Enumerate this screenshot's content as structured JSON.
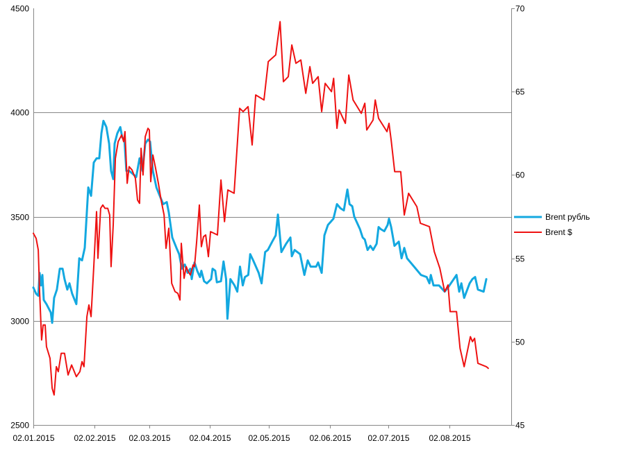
{
  "chart_data": {
    "type": "line",
    "title": "",
    "xlabel": "",
    "ylabel": "",
    "x_unit": "days since 02.01.2015",
    "xlim": [
      0,
      243.5
    ],
    "x_ticks": [
      {
        "day": 0,
        "label": "02.01.2015"
      },
      {
        "day": 31,
        "label": "02.02.2015"
      },
      {
        "day": 59,
        "label": "02.03.2015"
      },
      {
        "day": 90,
        "label": "02.04.2015"
      },
      {
        "day": 120,
        "label": "02.05.2015"
      },
      {
        "day": 151,
        "label": "02.06.2015"
      },
      {
        "day": 181,
        "label": "02.07.2015"
      },
      {
        "day": 212,
        "label": "02.08.2015"
      }
    ],
    "y_left": {
      "lim": [
        2500,
        4500
      ],
      "ticks": [
        "2500",
        "3000",
        "3500",
        "4000",
        "4500"
      ]
    },
    "y_right": {
      "lim": [
        45,
        70
      ],
      "ticks": [
        "45",
        "50",
        "55",
        "60",
        "65",
        "70"
      ]
    },
    "grid": true,
    "legend_position": "right",
    "series": [
      {
        "name": "Brent рубль",
        "axis": "left",
        "color": "#13a8e0",
        "points": [
          [
            0,
            3160
          ],
          [
            1.4,
            3130
          ],
          [
            2.5,
            3120
          ],
          [
            3.2,
            3230
          ],
          [
            3.9,
            3170
          ],
          [
            4.6,
            3220
          ],
          [
            5.3,
            3100
          ],
          [
            6.7,
            3080
          ],
          [
            8.9,
            3040
          ],
          [
            9.6,
            2990
          ],
          [
            10.6,
            3110
          ],
          [
            12,
            3150
          ],
          [
            13.5,
            3250
          ],
          [
            14.9,
            3250
          ],
          [
            15.9,
            3200
          ],
          [
            17.3,
            3150
          ],
          [
            18.4,
            3180
          ],
          [
            19.8,
            3130
          ],
          [
            21.9,
            3080
          ],
          [
            23.4,
            3300
          ],
          [
            24.8,
            3290
          ],
          [
            26.2,
            3350
          ],
          [
            28,
            3640
          ],
          [
            29.4,
            3600
          ],
          [
            30.8,
            3760
          ],
          [
            32.2,
            3780
          ],
          [
            33.6,
            3780
          ],
          [
            34.7,
            3900
          ],
          [
            35.7,
            3960
          ],
          [
            37.2,
            3930
          ],
          [
            38.6,
            3850
          ],
          [
            39.6,
            3720
          ],
          [
            40.7,
            3680
          ],
          [
            41.4,
            3850
          ],
          [
            42.8,
            3900
          ],
          [
            44.3,
            3930
          ],
          [
            45.3,
            3880
          ],
          [
            46.4,
            3870
          ],
          [
            47.4,
            3720
          ],
          [
            48.8,
            3720
          ],
          [
            51.3,
            3700
          ],
          [
            52.4,
            3690
          ],
          [
            54.1,
            3780
          ],
          [
            55.6,
            3720
          ],
          [
            57,
            3850
          ],
          [
            58.4,
            3870
          ],
          [
            59.5,
            3860
          ],
          [
            60.9,
            3720
          ],
          [
            62.7,
            3640
          ],
          [
            64.4,
            3600
          ],
          [
            66.2,
            3560
          ],
          [
            68,
            3570
          ],
          [
            69,
            3520
          ],
          [
            70.8,
            3400
          ],
          [
            72.9,
            3350
          ],
          [
            74.3,
            3320
          ],
          [
            75.7,
            3250
          ],
          [
            77.2,
            3270
          ],
          [
            78.6,
            3230
          ],
          [
            80,
            3250
          ],
          [
            80.7,
            3200
          ],
          [
            82.1,
            3280
          ],
          [
            83.5,
            3240
          ],
          [
            84.9,
            3210
          ],
          [
            85.6,
            3240
          ],
          [
            87,
            3190
          ],
          [
            88.4,
            3180
          ],
          [
            90.6,
            3200
          ],
          [
            91.3,
            3250
          ],
          [
            92.7,
            3240
          ],
          [
            93.5,
            3185
          ],
          [
            95.6,
            3190
          ],
          [
            96.9,
            3285
          ],
          [
            98.2,
            3200
          ],
          [
            98.9,
            3010
          ],
          [
            100.4,
            3200
          ],
          [
            102.5,
            3170
          ],
          [
            103.9,
            3140
          ],
          [
            105.3,
            3260
          ],
          [
            106.7,
            3170
          ],
          [
            107.8,
            3210
          ],
          [
            109.5,
            3220
          ],
          [
            110.5,
            3320
          ],
          [
            112,
            3290
          ],
          [
            114.8,
            3230
          ],
          [
            116.3,
            3180
          ],
          [
            118.1,
            3330
          ],
          [
            119.5,
            3340
          ],
          [
            121.7,
            3380
          ],
          [
            123.5,
            3410
          ],
          [
            124.6,
            3510
          ],
          [
            126.4,
            3330
          ],
          [
            128.8,
            3370
          ],
          [
            131,
            3400
          ],
          [
            131.7,
            3310
          ],
          [
            133.1,
            3340
          ],
          [
            134.5,
            3330
          ],
          [
            135.9,
            3320
          ],
          [
            138.1,
            3220
          ],
          [
            139.8,
            3290
          ],
          [
            141.3,
            3260
          ],
          [
            144.1,
            3260
          ],
          [
            145.1,
            3280
          ],
          [
            146.9,
            3230
          ],
          [
            148.3,
            3410
          ],
          [
            150.1,
            3460
          ],
          [
            152.9,
            3490
          ],
          [
            154.7,
            3560
          ],
          [
            156.5,
            3540
          ],
          [
            158.2,
            3530
          ],
          [
            160,
            3630
          ],
          [
            161.1,
            3560
          ],
          [
            162.5,
            3550
          ],
          [
            163.5,
            3500
          ],
          [
            166.4,
            3440
          ],
          [
            167.8,
            3400
          ],
          [
            168.9,
            3390
          ],
          [
            170.3,
            3340
          ],
          [
            171.7,
            3360
          ],
          [
            173.1,
            3340
          ],
          [
            174.9,
            3370
          ],
          [
            175.9,
            3450
          ],
          [
            177,
            3440
          ],
          [
            178.8,
            3430
          ],
          [
            180.5,
            3460
          ],
          [
            181.2,
            3490
          ],
          [
            182.3,
            3450
          ],
          [
            184,
            3360
          ],
          [
            186.2,
            3380
          ],
          [
            187.6,
            3300
          ],
          [
            189,
            3350
          ],
          [
            190.4,
            3300
          ],
          [
            194,
            3260
          ],
          [
            197.5,
            3220
          ],
          [
            200.4,
            3210
          ],
          [
            201.8,
            3180
          ],
          [
            202.5,
            3220
          ],
          [
            203.9,
            3170
          ],
          [
            206.7,
            3170
          ],
          [
            209.6,
            3140
          ],
          [
            211.3,
            3160
          ],
          [
            214.2,
            3200
          ],
          [
            215.6,
            3220
          ],
          [
            217,
            3140
          ],
          [
            218.1,
            3180
          ],
          [
            219.5,
            3110
          ],
          [
            222.3,
            3180
          ],
          [
            223.7,
            3200
          ],
          [
            225.1,
            3210
          ],
          [
            226.5,
            3150
          ],
          [
            229.4,
            3140
          ],
          [
            230.8,
            3200
          ]
        ]
      },
      {
        "name": "Brent $",
        "axis": "right",
        "color": "#ee1111",
        "points": [
          [
            0,
            56.5
          ],
          [
            1.4,
            56.2
          ],
          [
            2.5,
            55.5
          ],
          [
            3.2,
            53
          ],
          [
            4.2,
            50.1
          ],
          [
            5,
            51
          ],
          [
            6,
            51
          ],
          [
            6.7,
            49.7
          ],
          [
            8.5,
            49
          ],
          [
            9.6,
            47.2
          ],
          [
            10.6,
            46.8
          ],
          [
            11.7,
            48.5
          ],
          [
            12.7,
            48.2
          ],
          [
            14.2,
            49.3
          ],
          [
            15.9,
            49.3
          ],
          [
            17.7,
            48
          ],
          [
            19.5,
            48.6
          ],
          [
            21.9,
            47.9
          ],
          [
            23.7,
            48.2
          ],
          [
            24.8,
            48.8
          ],
          [
            25.8,
            48.5
          ],
          [
            27.3,
            51.5
          ],
          [
            28.3,
            52.2
          ],
          [
            29.4,
            51.5
          ],
          [
            30.8,
            54.5
          ],
          [
            32.2,
            57.8
          ],
          [
            32.9,
            55
          ],
          [
            34.3,
            58
          ],
          [
            35.4,
            58.2
          ],
          [
            36.5,
            58
          ],
          [
            37.9,
            58
          ],
          [
            38.9,
            57.6
          ],
          [
            39.6,
            54.5
          ],
          [
            40.7,
            57
          ],
          [
            41.8,
            61
          ],
          [
            43.2,
            62
          ],
          [
            45,
            62.4
          ],
          [
            46,
            62
          ],
          [
            46.7,
            62.6
          ],
          [
            47.8,
            59.5
          ],
          [
            48.8,
            60.5
          ],
          [
            50.3,
            60.3
          ],
          [
            52,
            59.8
          ],
          [
            53.1,
            58.5
          ],
          [
            54.1,
            58.3
          ],
          [
            54.9,
            61.6
          ],
          [
            55.9,
            60
          ],
          [
            57,
            62.3
          ],
          [
            58.4,
            62.8
          ],
          [
            59.1,
            62.7
          ],
          [
            59.8,
            59.6
          ],
          [
            60.9,
            61.2
          ],
          [
            62.3,
            60.4
          ],
          [
            63.7,
            59.5
          ],
          [
            65.1,
            58.5
          ],
          [
            66.6,
            57.6
          ],
          [
            67.6,
            55.6
          ],
          [
            69,
            56.8
          ],
          [
            70.5,
            53.5
          ],
          [
            72.2,
            53
          ],
          [
            73.6,
            52.9
          ],
          [
            74.7,
            52.5
          ],
          [
            75.4,
            55.9
          ],
          [
            76.8,
            53.8
          ],
          [
            77.9,
            54.5
          ],
          [
            78.9,
            54.2
          ],
          [
            80,
            54
          ],
          [
            81.4,
            54.6
          ],
          [
            82.1,
            54.5
          ],
          [
            83.2,
            56
          ],
          [
            84.6,
            58.2
          ],
          [
            85.6,
            55.7
          ],
          [
            86.7,
            56.3
          ],
          [
            87.8,
            56.4
          ],
          [
            89.2,
            55.1
          ],
          [
            90.3,
            56.6
          ],
          [
            93.8,
            56.4
          ],
          [
            95.6,
            59.7
          ],
          [
            97.4,
            57.2
          ],
          [
            99.1,
            59.1
          ],
          [
            102.3,
            58.9
          ],
          [
            105.1,
            64
          ],
          [
            106.9,
            63.8
          ],
          [
            109.4,
            64.1
          ],
          [
            111.5,
            61.8
          ],
          [
            113.3,
            64.8
          ],
          [
            117.5,
            64.5
          ],
          [
            119.7,
            66.8
          ],
          [
            123.5,
            67.2
          ],
          [
            125.7,
            69.2
          ],
          [
            127.4,
            65.6
          ],
          [
            129.9,
            65.9
          ],
          [
            131.7,
            67.8
          ],
          [
            133.8,
            66.7
          ],
          [
            136.3,
            66.9
          ],
          [
            138.8,
            64.9
          ],
          [
            140.9,
            66.5
          ],
          [
            142.3,
            65.5
          ],
          [
            145.1,
            65.9
          ],
          [
            146.9,
            63.8
          ],
          [
            148.7,
            65.5
          ],
          [
            151.9,
            65
          ],
          [
            153,
            65.8
          ],
          [
            154.7,
            62.8
          ],
          [
            155.8,
            63.9
          ],
          [
            159,
            63.1
          ],
          [
            160.7,
            66
          ],
          [
            162.9,
            64.5
          ],
          [
            167.1,
            63.7
          ],
          [
            168.9,
            64.3
          ],
          [
            169.9,
            62.7
          ],
          [
            173.1,
            63.3
          ],
          [
            174.2,
            64.5
          ],
          [
            175.9,
            63.4
          ],
          [
            180.2,
            62.6
          ],
          [
            181.2,
            63.1
          ],
          [
            182.3,
            62.1
          ],
          [
            184.1,
            60.2
          ],
          [
            187.2,
            60.2
          ],
          [
            189,
            57.6
          ],
          [
            191.2,
            58.9
          ],
          [
            195.4,
            58.1
          ],
          [
            197.2,
            57.1
          ],
          [
            201.8,
            56.9
          ],
          [
            204.3,
            55.4
          ],
          [
            207.1,
            54.4
          ],
          [
            209.6,
            53
          ],
          [
            211.3,
            53.4
          ],
          [
            212.4,
            51.8
          ],
          [
            215.6,
            51.8
          ],
          [
            217.4,
            49.6
          ],
          [
            219.5,
            48.5
          ],
          [
            222.7,
            50.3
          ],
          [
            223.7,
            50
          ],
          [
            224.8,
            50.2
          ],
          [
            226.5,
            48.7
          ],
          [
            230.8,
            48.5
          ],
          [
            231.8,
            48.4
          ]
        ]
      }
    ]
  }
}
